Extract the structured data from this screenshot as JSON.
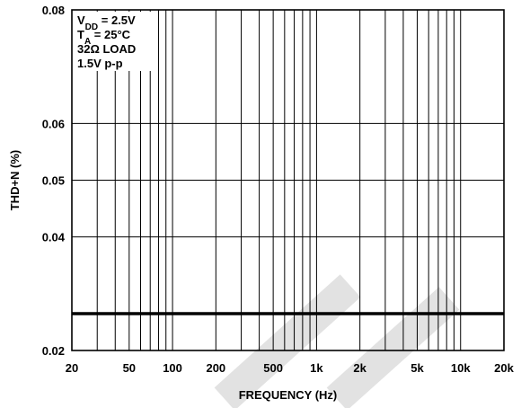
{
  "chart_data": {
    "type": "line",
    "x_scale": "log",
    "xlim": [
      20,
      20000
    ],
    "ylim": [
      0.02,
      0.08
    ],
    "grid": true,
    "xlabel": "FREQUENCY (Hz)",
    "ylabel": "THD+N (%)",
    "x_ticks": [
      20,
      50,
      100,
      200,
      500,
      1000,
      2000,
      5000,
      10000,
      20000
    ],
    "x_tick_labels": [
      "20",
      "50",
      "100",
      "200",
      "500",
      "1k",
      "2k",
      "5k",
      "10k",
      "20k"
    ],
    "y_ticks": [
      0.02,
      0.04,
      0.05,
      0.06,
      0.08
    ],
    "y_tick_labels": [
      "0.02",
      "0.04",
      "0.05",
      "0.06",
      "0.08"
    ],
    "conditions": [
      {
        "main": "V",
        "sub": "DD",
        "rest": " = 2.5V"
      },
      {
        "main": "T",
        "sub": "A",
        "rest": " = 25°C"
      },
      {
        "main": "32Ω LOAD",
        "sub": "",
        "rest": ""
      },
      {
        "main": "1.5V p-p",
        "sub": "",
        "rest": ""
      }
    ],
    "series": [
      {
        "x": [
          20,
          50,
          100,
          200,
          500,
          1000,
          2000,
          5000,
          10000,
          20000
        ],
        "y": [
          0.0265,
          0.0265,
          0.0265,
          0.0265,
          0.0265,
          0.0265,
          0.0265,
          0.0265,
          0.0265,
          0.0265
        ]
      }
    ],
    "colors": {
      "line": "#000000",
      "grid": "#000000",
      "watermark": "#e2e2e2"
    }
  }
}
